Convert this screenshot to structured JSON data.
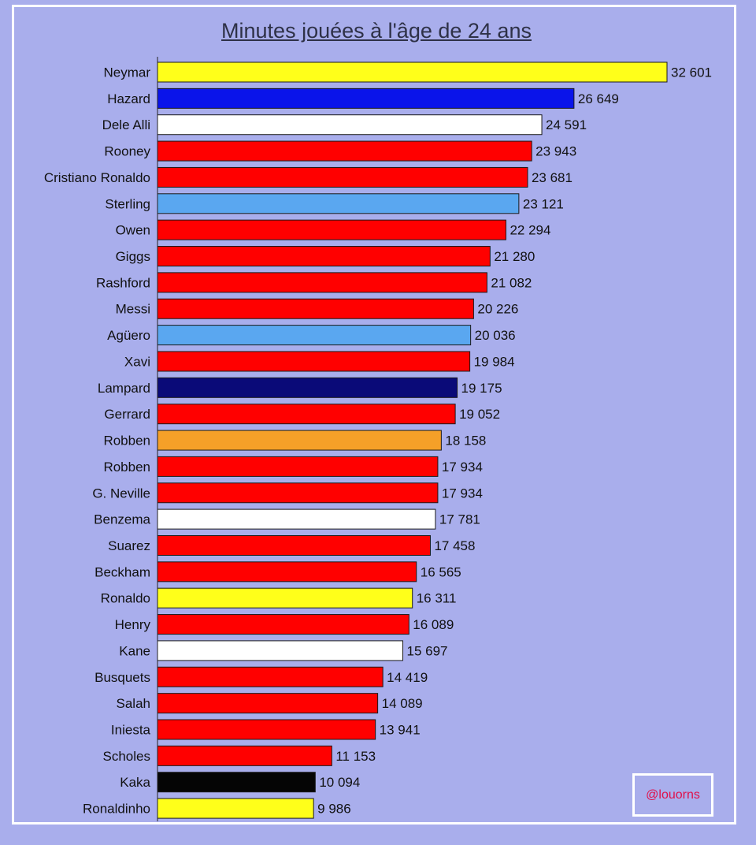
{
  "chart_data": {
    "type": "bar",
    "orientation": "horizontal",
    "title": "Minutes jouées à l'âge de 24 ans",
    "xlabel": "",
    "ylabel": "",
    "xlim": [
      0,
      33000
    ],
    "grid": false,
    "legend": "none",
    "categories": [
      "Neymar",
      "Hazard",
      "Dele Alli",
      "Rooney",
      "Cristiano Ronaldo",
      "Sterling",
      "Owen",
      "Giggs",
      "Rashford",
      "Messi",
      "Agüero",
      "Xavi",
      "Lampard",
      "Gerrard",
      "Robben",
      "Robben",
      "G. Neville",
      "Benzema",
      "Suarez",
      "Beckham",
      "Ronaldo",
      "Henry",
      "Kane",
      "Busquets",
      "Salah",
      "Iniesta",
      "Scholes",
      "Kaka",
      "Ronaldinho"
    ],
    "values": [
      32601,
      26649,
      24591,
      23943,
      23681,
      23121,
      22294,
      21280,
      21082,
      20226,
      20036,
      19984,
      19175,
      19052,
      18158,
      17934,
      17934,
      17781,
      17458,
      16565,
      16311,
      16089,
      15697,
      14419,
      14089,
      13941,
      11153,
      10094,
      9986
    ],
    "value_labels": [
      "32 601",
      "26 649",
      "24 591",
      "23 943",
      "23 681",
      "23 121",
      "22 294",
      "21 280",
      "21 082",
      "20 226",
      "20 036",
      "19 984",
      "19 175",
      "19 052",
      "18 158",
      "17 934",
      "17 934",
      "17 781",
      "17 458",
      "16 565",
      "16 311",
      "16 089",
      "15 697",
      "14 419",
      "14 089",
      "13 941",
      "11 153",
      "10 094",
      "9 986"
    ],
    "colors": [
      "#ffff1a",
      "#0a14ea",
      "#ffffff",
      "#ff0000",
      "#ff0000",
      "#5aa7f0",
      "#ff0000",
      "#ff0000",
      "#ff0000",
      "#ff0000",
      "#5aa7f0",
      "#ff0000",
      "#0a0a78",
      "#ff0000",
      "#f5a028",
      "#ff0000",
      "#ff0000",
      "#ffffff",
      "#ff0000",
      "#ff0000",
      "#ffff1a",
      "#ff0000",
      "#ffffff",
      "#ff0000",
      "#ff0000",
      "#ff0000",
      "#ff0000",
      "#050505",
      "#ffff1a"
    ]
  },
  "watermark": "@louorns",
  "background_color": "#a9aeec"
}
